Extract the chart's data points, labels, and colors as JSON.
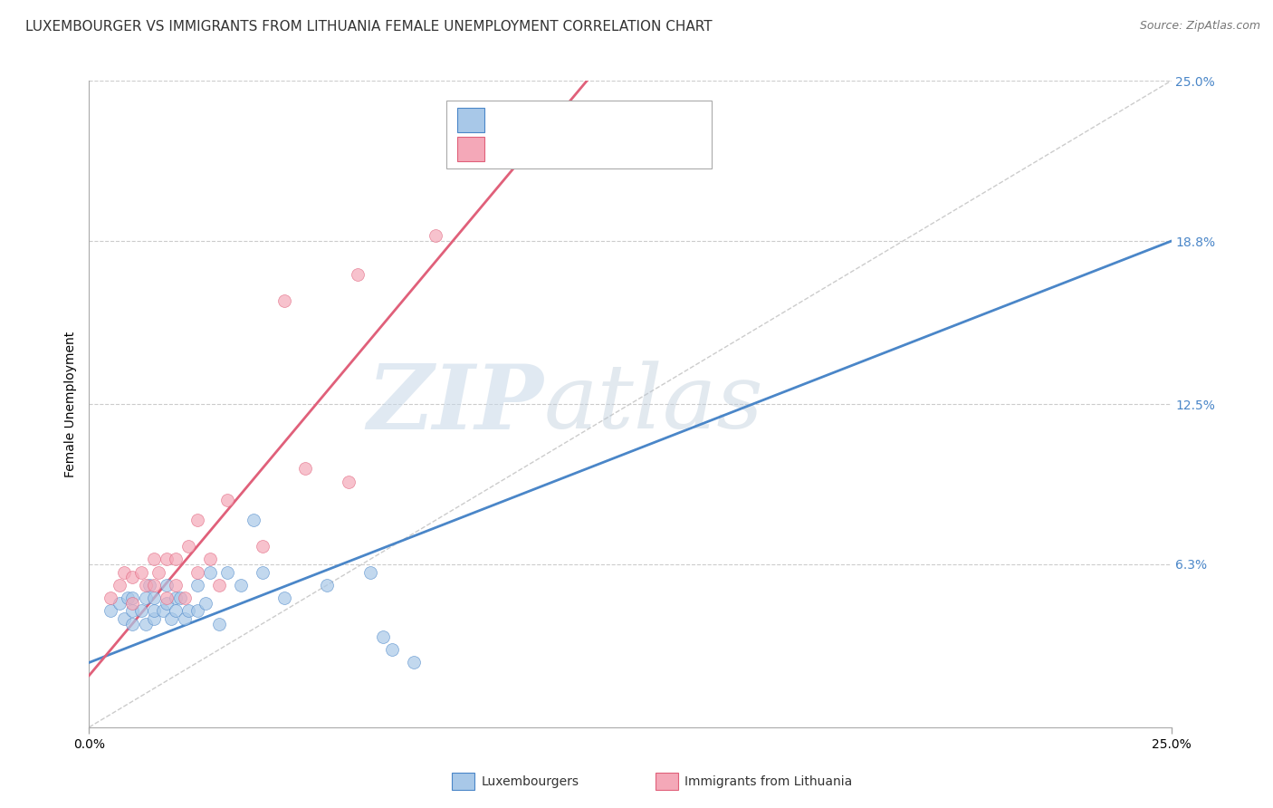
{
  "title": "LUXEMBOURGER VS IMMIGRANTS FROM LITHUANIA FEMALE UNEMPLOYMENT CORRELATION CHART",
  "source": "Source: ZipAtlas.com",
  "ylabel": "Female Unemployment",
  "xlim": [
    0,
    0.25
  ],
  "ylim": [
    0,
    0.25
  ],
  "yticks": [
    0.063,
    0.125,
    0.188,
    0.25
  ],
  "ytick_labels": [
    "6.3%",
    "12.5%",
    "18.8%",
    "25.0%"
  ],
  "xticks": [
    0.0,
    0.25
  ],
  "xtick_labels": [
    "0.0%",
    "25.0%"
  ],
  "blue_color": "#a8c8e8",
  "pink_color": "#f4a8b8",
  "blue_line_color": "#4a86c8",
  "pink_line_color": "#e0607a",
  "blue_scatter_x": [
    0.005,
    0.007,
    0.008,
    0.009,
    0.01,
    0.01,
    0.01,
    0.012,
    0.013,
    0.013,
    0.014,
    0.015,
    0.015,
    0.015,
    0.017,
    0.018,
    0.018,
    0.019,
    0.02,
    0.02,
    0.021,
    0.022,
    0.023,
    0.025,
    0.025,
    0.027,
    0.028,
    0.03,
    0.032,
    0.035,
    0.038,
    0.04,
    0.045,
    0.055,
    0.065,
    0.068,
    0.07,
    0.075
  ],
  "blue_scatter_y": [
    0.045,
    0.048,
    0.042,
    0.05,
    0.04,
    0.045,
    0.05,
    0.045,
    0.04,
    0.05,
    0.055,
    0.042,
    0.045,
    0.05,
    0.045,
    0.048,
    0.055,
    0.042,
    0.045,
    0.05,
    0.05,
    0.042,
    0.045,
    0.045,
    0.055,
    0.048,
    0.06,
    0.04,
    0.06,
    0.055,
    0.08,
    0.06,
    0.05,
    0.055,
    0.06,
    0.035,
    0.03,
    0.025
  ],
  "pink_scatter_x": [
    0.005,
    0.007,
    0.008,
    0.01,
    0.01,
    0.012,
    0.013,
    0.015,
    0.015,
    0.016,
    0.018,
    0.018,
    0.02,
    0.02,
    0.022,
    0.023,
    0.025,
    0.025,
    0.028,
    0.03,
    0.032,
    0.04,
    0.045,
    0.05,
    0.06,
    0.062,
    0.08
  ],
  "pink_scatter_y": [
    0.05,
    0.055,
    0.06,
    0.048,
    0.058,
    0.06,
    0.055,
    0.055,
    0.065,
    0.06,
    0.05,
    0.065,
    0.055,
    0.065,
    0.05,
    0.07,
    0.06,
    0.08,
    0.065,
    0.055,
    0.088,
    0.07,
    0.165,
    0.1,
    0.095,
    0.175,
    0.19
  ],
  "blue_line_x": [
    0.0,
    0.25
  ],
  "blue_line_y": [
    0.025,
    0.188
  ],
  "pink_line_x": [
    0.0,
    0.115
  ],
  "pink_line_y": [
    0.02,
    0.25
  ],
  "diag_line_x": [
    0.0,
    0.25
  ],
  "diag_line_y": [
    0.0,
    0.25
  ],
  "background_color": "#ffffff",
  "grid_color": "#cccccc",
  "title_fontsize": 11,
  "axis_label_fontsize": 10,
  "tick_fontsize": 10,
  "legend_fontsize": 11,
  "watermark_zip": "ZIP",
  "watermark_atlas": "atlas"
}
